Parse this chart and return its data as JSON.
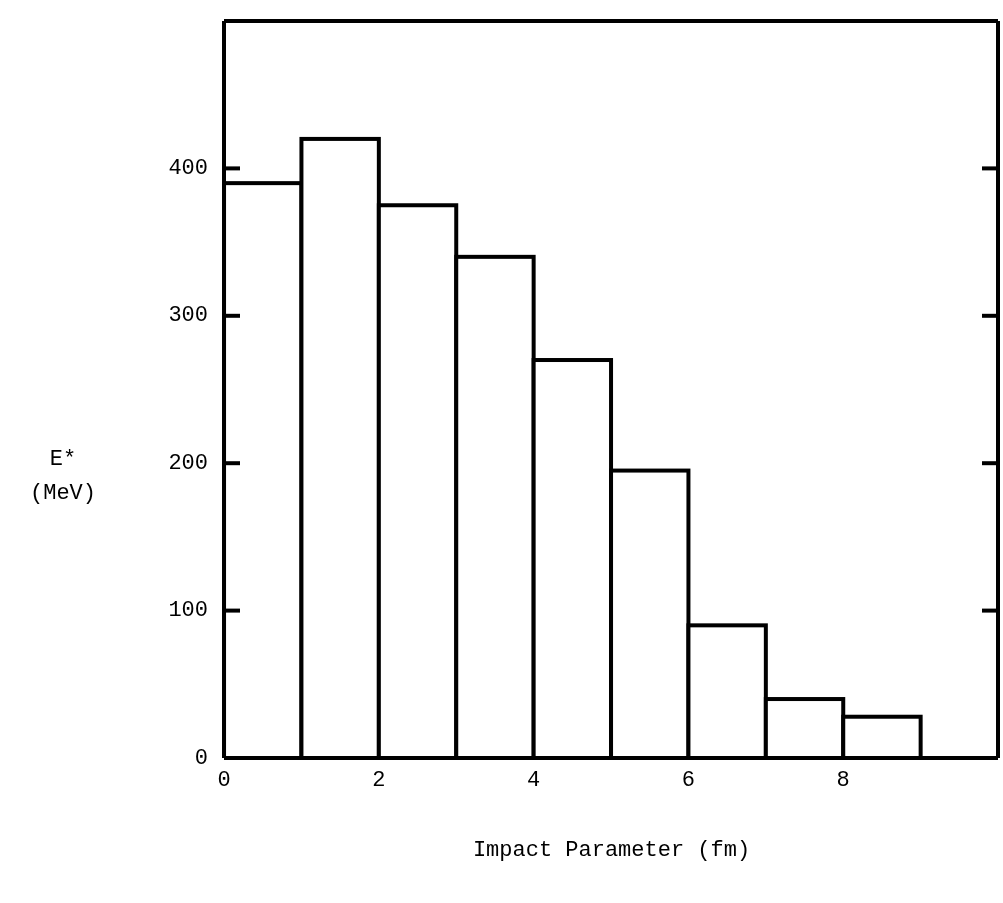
{
  "chart_data": {
    "type": "histogram",
    "xlabel": "Impact Parameter (fm)",
    "ylabel": "E* (MeV)",
    "bins": [
      0,
      1,
      2,
      3,
      4,
      5,
      6,
      7,
      8,
      9
    ],
    "values": [
      390,
      420,
      375,
      340,
      270,
      195,
      90,
      40,
      28
    ],
    "color": "#ffffff",
    "xlim": [
      0,
      10
    ],
    "xticks": [
      0,
      2,
      4,
      6,
      8
    ],
    "ylim": [
      0,
      500
    ],
    "yticks": [
      0,
      100,
      200,
      300,
      400
    ],
    "grid": false,
    "legend": false
  }
}
